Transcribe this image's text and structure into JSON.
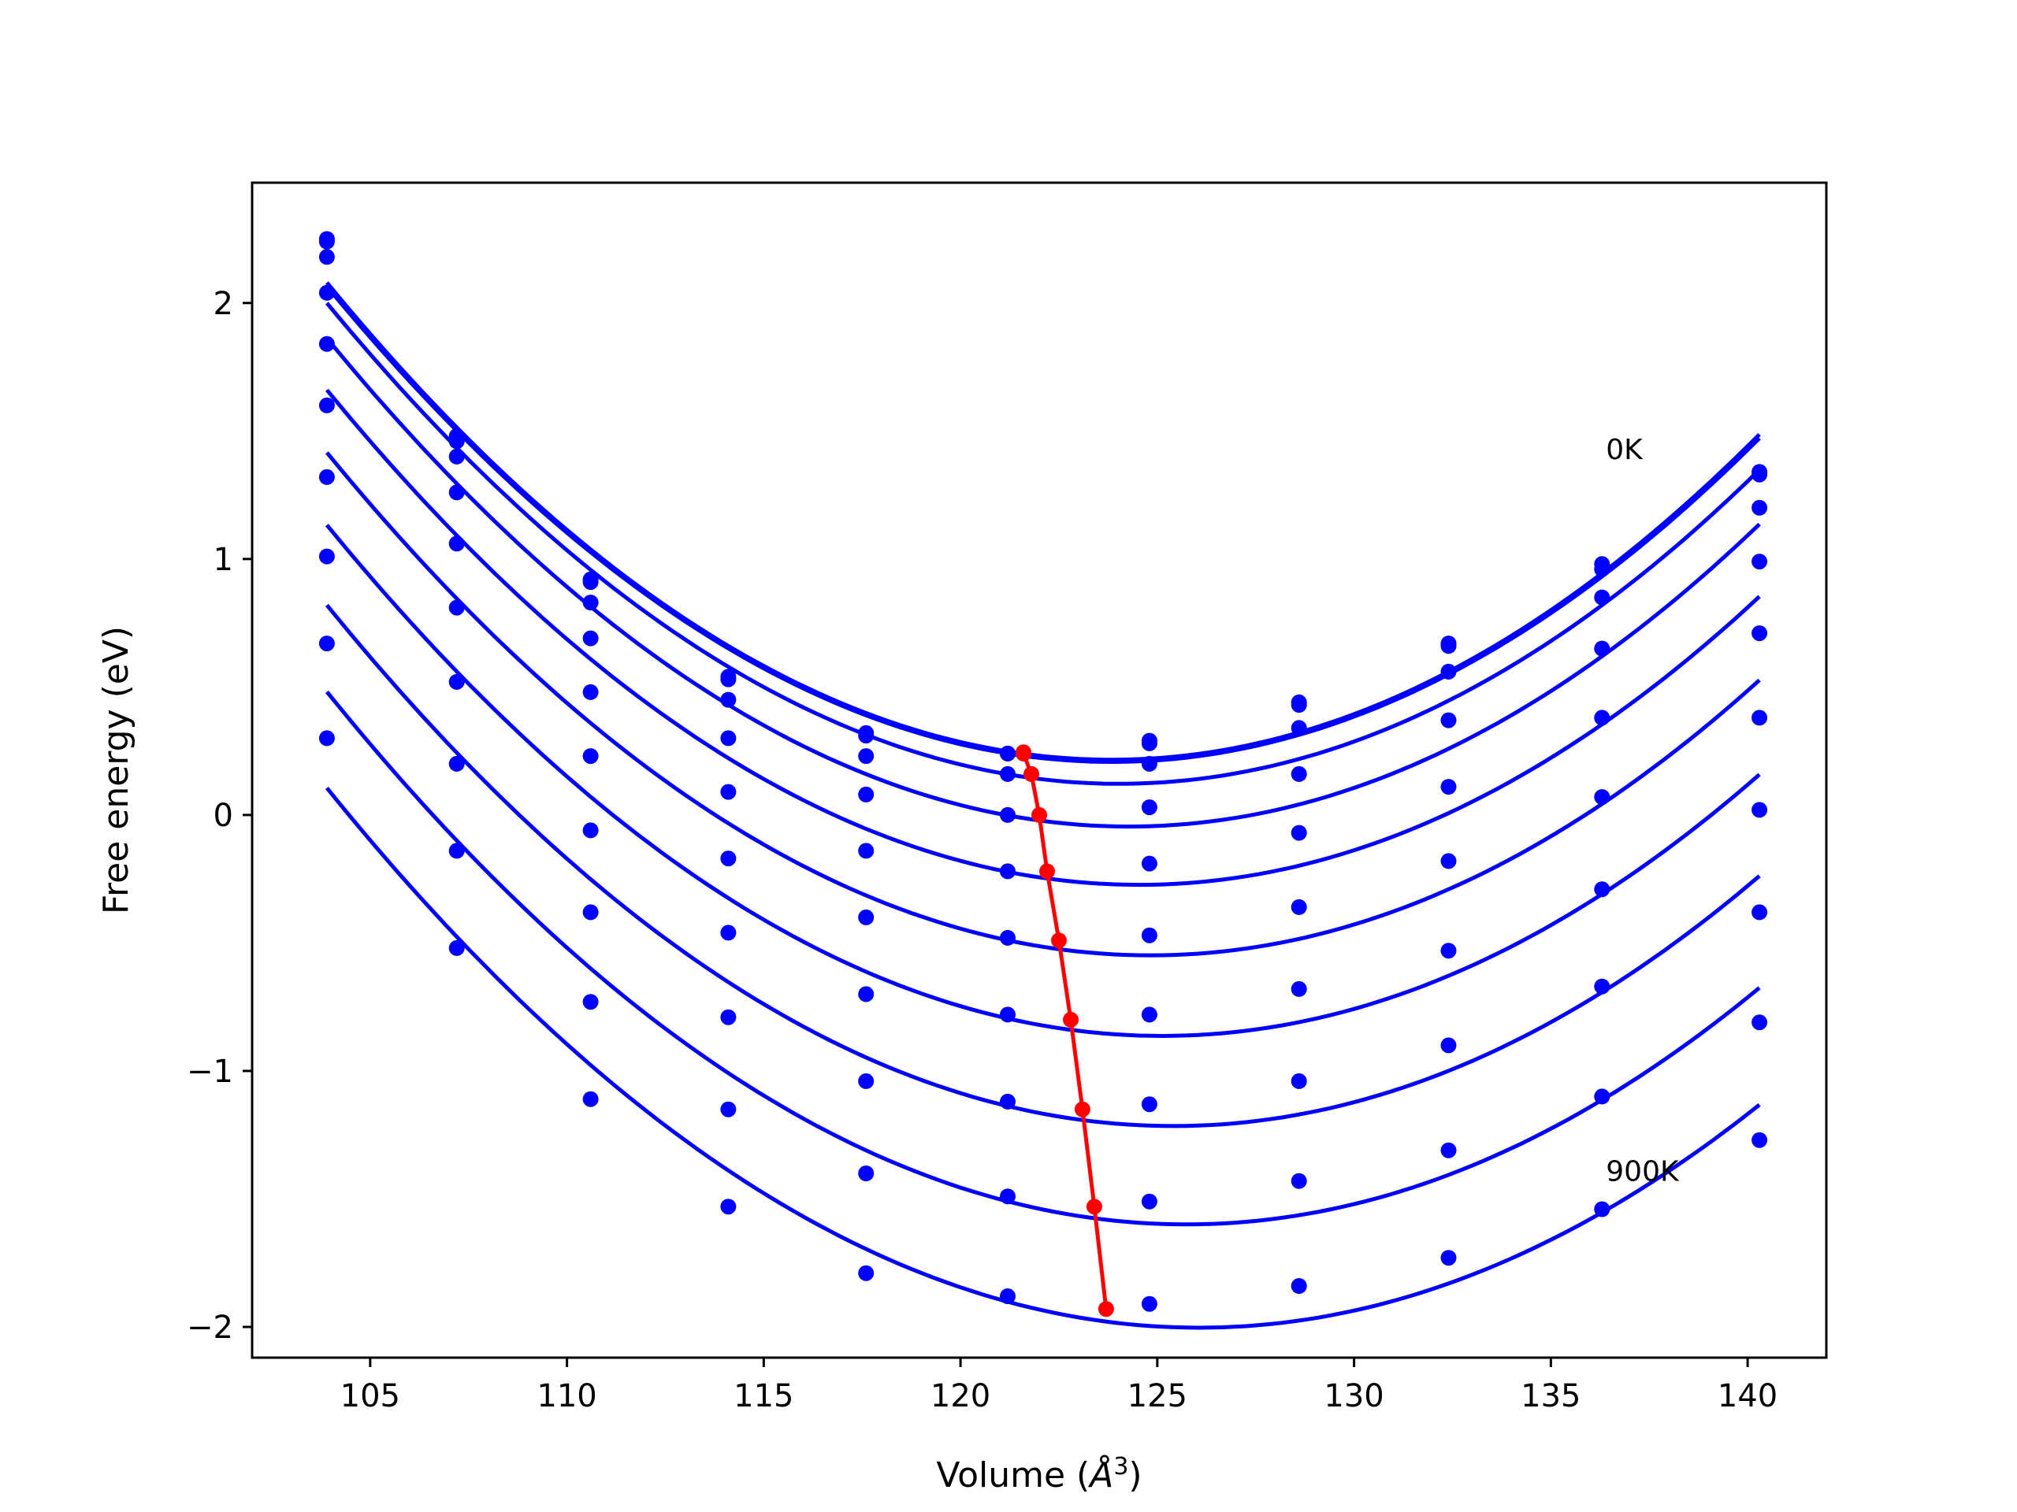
{
  "chart_data": {
    "type": "line",
    "xlabel": "Volume (Å³)",
    "xlabel_parts": {
      "prefix": "Volume (",
      "unit": "Å",
      "exponent": "3",
      "suffix": ")"
    },
    "ylabel": "Free energy (eV)",
    "xlim": [
      102,
      142
    ],
    "ylim": [
      -2.12,
      2.47
    ],
    "x_ticks": [
      105,
      110,
      115,
      120,
      125,
      130,
      135,
      140
    ],
    "y_ticks": [
      -2,
      -1,
      0,
      1,
      2
    ],
    "x_tick_labels": [
      "105",
      "110",
      "115",
      "120",
      "125",
      "130",
      "135",
      "140"
    ],
    "y_tick_labels": [
      "−2",
      "−1",
      "0",
      "1",
      "2"
    ],
    "grid": false,
    "legend": "none",
    "colors": {
      "curves": "#0000ff",
      "minima": "#ff0000",
      "axes": "#000000"
    },
    "x": [
      103.9,
      107.2,
      110.6,
      114.1,
      117.6,
      121.2,
      124.8,
      128.6,
      132.4,
      136.3,
      140.3
    ],
    "annotations": [
      {
        "text": "0K",
        "x": 136.4,
        "y": 1.39
      },
      {
        "text": "900K",
        "x": 136.4,
        "y": -1.43
      }
    ],
    "series": [
      {
        "values": [
          2.25,
          1.48,
          0.92,
          0.54,
          0.32,
          0.24,
          0.29,
          0.44,
          0.67,
          0.98,
          1.34
        ],
        "minimum": {
          "x": 121.6,
          "y": 0.245
        }
      },
      {
        "values": [
          2.24,
          1.46,
          0.91,
          0.53,
          0.31,
          0.24,
          0.28,
          0.43,
          0.66,
          0.96,
          1.33
        ],
        "minimum": {
          "x": 121.6,
          "y": 0.24
        }
      },
      {
        "values": [
          2.18,
          1.4,
          0.83,
          0.45,
          0.23,
          0.16,
          0.2,
          0.34,
          0.56,
          0.85,
          1.2
        ],
        "minimum": {
          "x": 121.8,
          "y": 0.16
        }
      },
      {
        "values": [
          2.04,
          1.26,
          0.69,
          0.3,
          0.08,
          0.0,
          0.03,
          0.16,
          0.37,
          0.65,
          0.99
        ],
        "minimum": {
          "x": 122.0,
          "y": 0.0
        }
      },
      {
        "values": [
          1.84,
          1.06,
          0.48,
          0.09,
          -0.14,
          -0.22,
          -0.19,
          -0.07,
          0.11,
          0.38,
          0.71
        ],
        "minimum": {
          "x": 122.2,
          "y": -0.22
        }
      },
      {
        "values": [
          1.6,
          0.81,
          0.23,
          -0.17,
          -0.4,
          -0.48,
          -0.47,
          -0.36,
          -0.18,
          0.07,
          0.38
        ],
        "minimum": {
          "x": 122.5,
          "y": -0.49
        }
      },
      {
        "values": [
          1.32,
          0.52,
          -0.06,
          -0.46,
          -0.7,
          -0.78,
          -0.78,
          -0.68,
          -0.53,
          -0.29,
          0.02
        ],
        "minimum": {
          "x": 122.8,
          "y": -0.8
        }
      },
      {
        "values": [
          1.01,
          0.2,
          -0.38,
          -0.79,
          -1.04,
          -1.12,
          -1.13,
          -1.04,
          -0.9,
          -0.67,
          -0.38
        ],
        "minimum": {
          "x": 123.1,
          "y": -1.15
        }
      },
      {
        "values": [
          0.67,
          -0.14,
          -0.73,
          -1.15,
          -1.4,
          -1.49,
          -1.51,
          -1.43,
          -1.31,
          -1.1,
          -0.81
        ],
        "minimum": {
          "x": 123.4,
          "y": -1.53
        }
      },
      {
        "values": [
          0.3,
          -0.52,
          -1.11,
          -1.53,
          -1.79,
          -1.88,
          -1.91,
          -1.84,
          -1.73,
          -1.54,
          -1.27
        ],
        "minimum": {
          "x": 123.7,
          "y": -1.93
        }
      }
    ]
  }
}
